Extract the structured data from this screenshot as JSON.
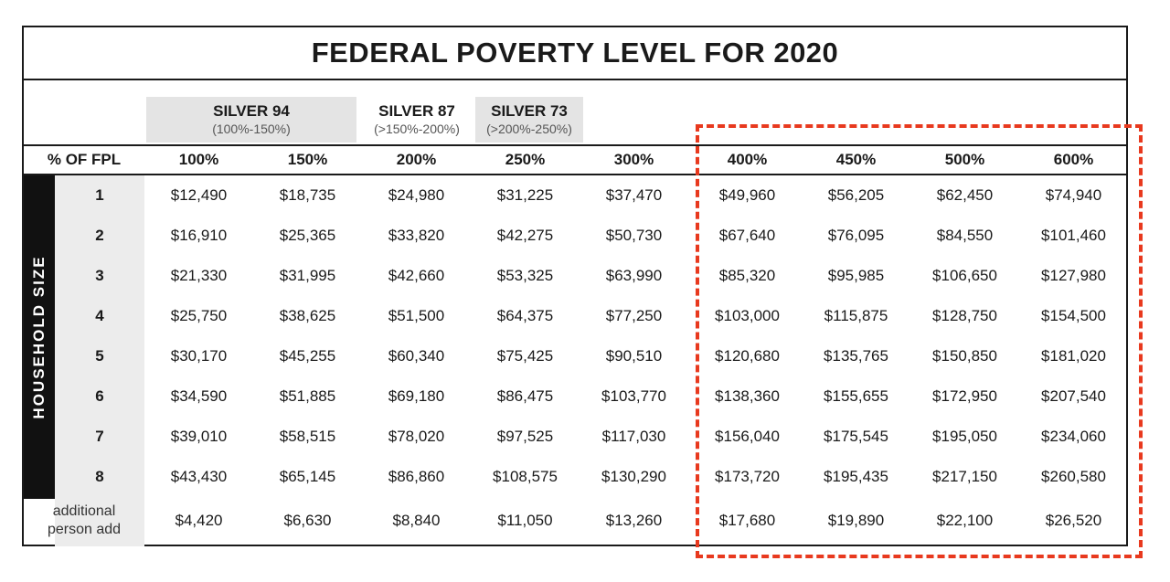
{
  "title": "FEDERAL POVERTY LEVEL FOR 2020",
  "tiers": [
    {
      "name": "SILVER 94",
      "range": "(100%-150%)"
    },
    {
      "name": "SILVER 87",
      "range": "(>150%-200%)"
    },
    {
      "name": "SILVER 73",
      "range": "(>200%-250%)"
    }
  ],
  "header": {
    "label": "% OF FPL",
    "columns": [
      "100%",
      "150%",
      "200%",
      "250%",
      "300%",
      "400%",
      "450%",
      "500%",
      "600%"
    ]
  },
  "side_label": "HOUSEHOLD SIZE",
  "rows": [
    {
      "size": "1",
      "values": [
        "$12,490",
        "$18,735",
        "$24,980",
        "$31,225",
        "$37,470",
        "$49,960",
        "$56,205",
        "$62,450",
        "$74,940"
      ]
    },
    {
      "size": "2",
      "values": [
        "$16,910",
        "$25,365",
        "$33,820",
        "$42,275",
        "$50,730",
        "$67,640",
        "$76,095",
        "$84,550",
        "$101,460"
      ]
    },
    {
      "size": "3",
      "values": [
        "$21,330",
        "$31,995",
        "$42,660",
        "$53,325",
        "$63,990",
        "$85,320",
        "$95,985",
        "$106,650",
        "$127,980"
      ]
    },
    {
      "size": "4",
      "values": [
        "$25,750",
        "$38,625",
        "$51,500",
        "$64,375",
        "$77,250",
        "$103,000",
        "$115,875",
        "$128,750",
        "$154,500"
      ]
    },
    {
      "size": "5",
      "values": [
        "$30,170",
        "$45,255",
        "$60,340",
        "$75,425",
        "$90,510",
        "$120,680",
        "$135,765",
        "$150,850",
        "$181,020"
      ]
    },
    {
      "size": "6",
      "values": [
        "$34,590",
        "$51,885",
        "$69,180",
        "$86,475",
        "$103,770",
        "$138,360",
        "$155,655",
        "$172,950",
        "$207,540"
      ]
    },
    {
      "size": "7",
      "values": [
        "$39,010",
        "$58,515",
        "$78,020",
        "$97,525",
        "$117,030",
        "$156,040",
        "$175,545",
        "$195,050",
        "$234,060"
      ]
    },
    {
      "size": "8",
      "values": [
        "$43,430",
        "$65,145",
        "$86,860",
        "$108,575",
        "$130,290",
        "$173,720",
        "$195,435",
        "$217,150",
        "$260,580"
      ]
    }
  ],
  "additional": {
    "label_line1": "additional",
    "label_line2": "person add",
    "values": [
      "$4,420",
      "$6,630",
      "$8,840",
      "$11,050",
      "$13,260",
      "$17,680",
      "$19,890",
      "$22,100",
      "$26,520"
    ]
  },
  "colors": {
    "highlight": "#e8391e",
    "shade": "#e4e4e4"
  }
}
